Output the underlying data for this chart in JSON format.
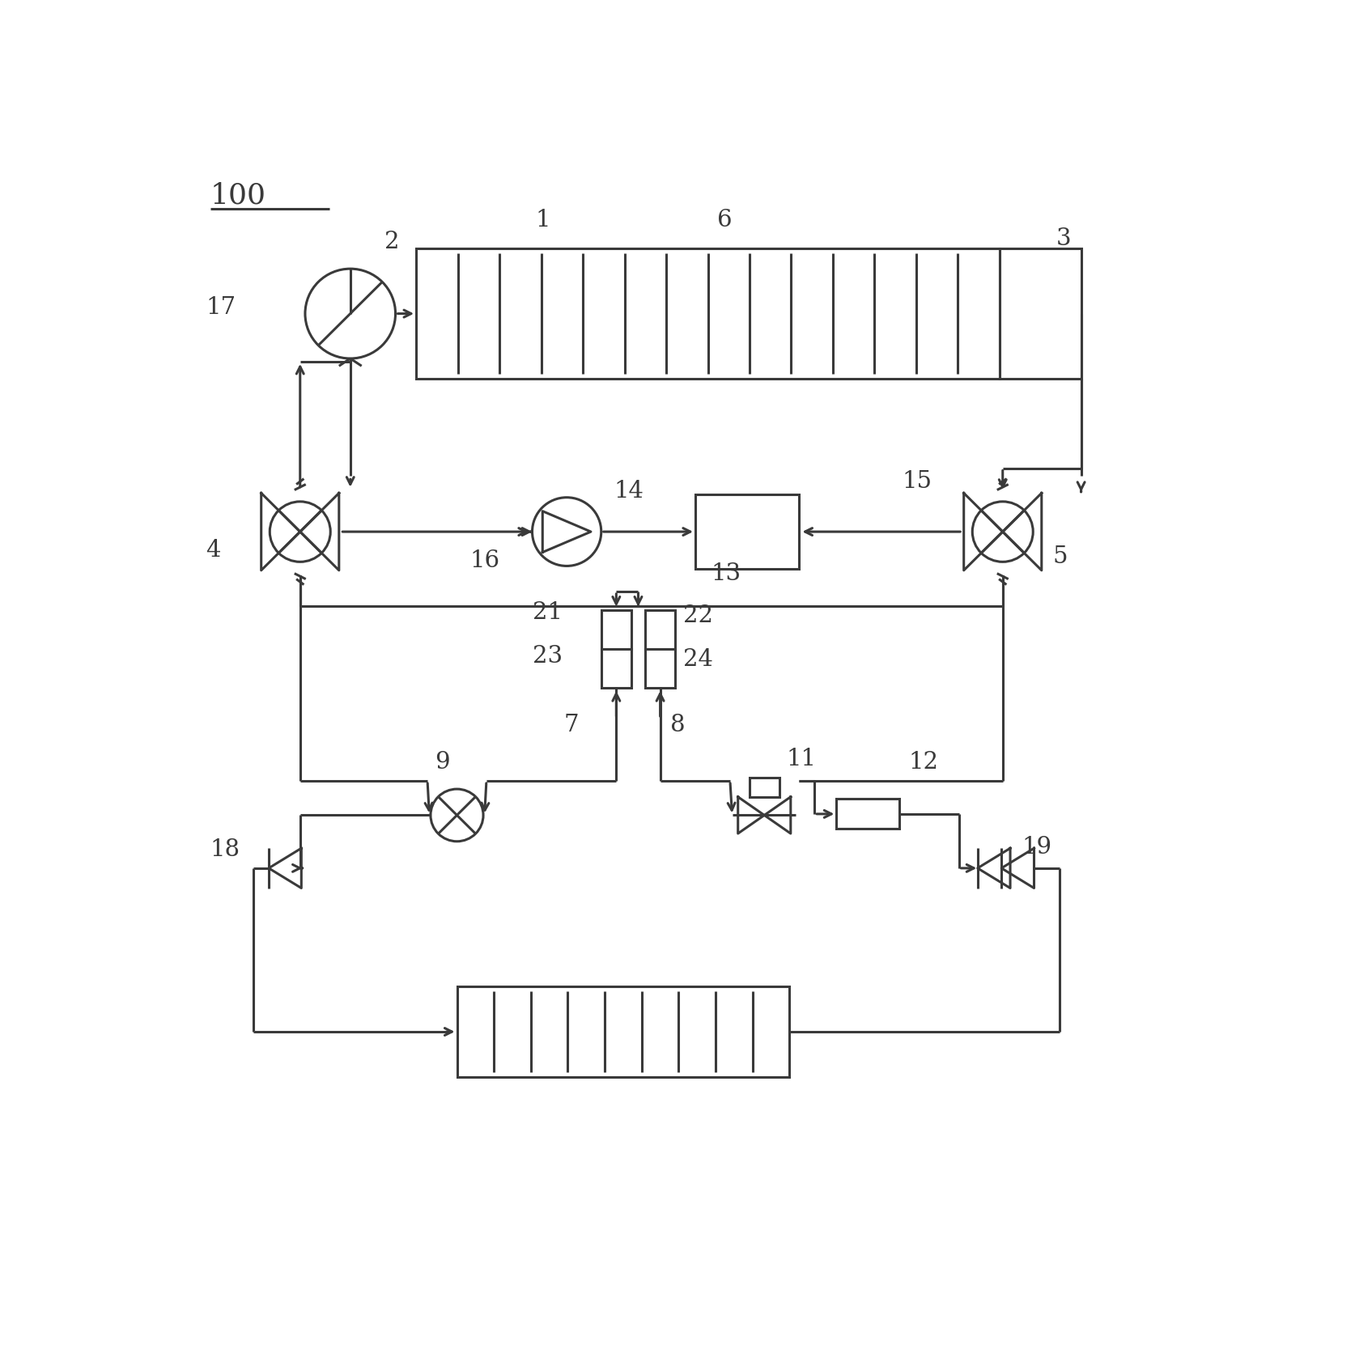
{
  "bg_color": "#ffffff",
  "line_color": "#3a3a3a",
  "lw": 2.2,
  "font_size": 21
}
